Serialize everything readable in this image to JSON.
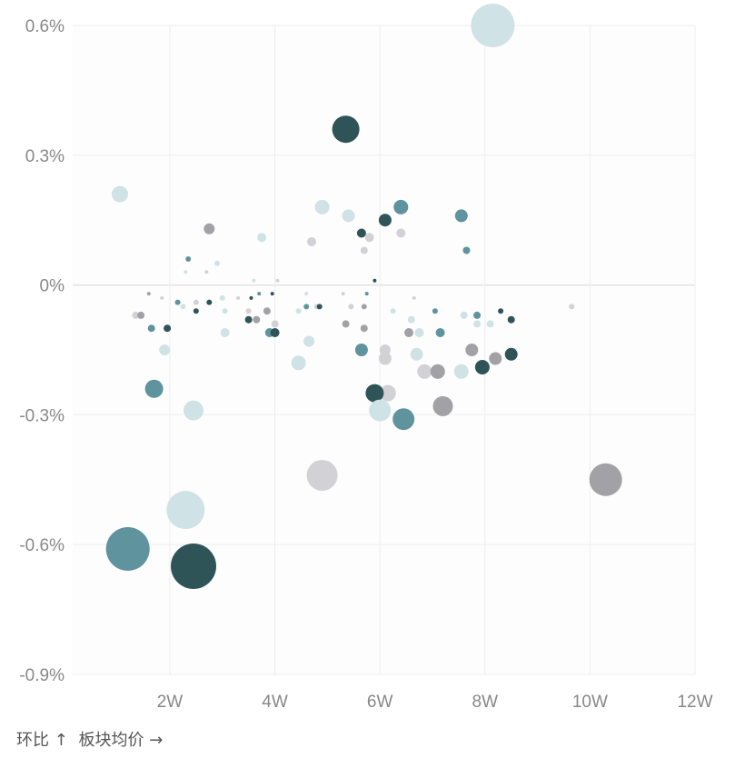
{
  "chart_data": {
    "type": "scatter",
    "title": "",
    "xlabel": "板块均价 →",
    "ylabel": "环比 ↑",
    "x_unit": "W",
    "xlim": [
      0.15,
      12.0
    ],
    "ylim": [
      -0.9,
      0.6
    ],
    "x_ticks": [
      {
        "value": 2,
        "label": "2W"
      },
      {
        "value": 4,
        "label": "4W"
      },
      {
        "value": 6,
        "label": "6W"
      },
      {
        "value": 8,
        "label": "8W"
      },
      {
        "value": 10,
        "label": "10W"
      },
      {
        "value": 12,
        "label": "12W"
      }
    ],
    "y_ticks": [
      {
        "value": 0.6,
        "label": "0.6%"
      },
      {
        "value": 0.3,
        "label": "0.3%"
      },
      {
        "value": 0,
        "label": "0%"
      },
      {
        "value": -0.3,
        "label": "-0.3%"
      },
      {
        "value": -0.6,
        "label": "-0.6%"
      },
      {
        "value": -0.9,
        "label": "-0.9%"
      }
    ],
    "grid": true,
    "colors": {
      "dark": "#2e5458",
      "teal": "#5f939e",
      "light": "#cfe2e5",
      "lightgray": "#d2d2d6",
      "gray": "#a2a2a6"
    },
    "points": [
      {
        "x": 8.15,
        "y": 0.6,
        "size": 24,
        "color": "light"
      },
      {
        "x": 5.35,
        "y": 0.36,
        "size": 15,
        "color": "dark"
      },
      {
        "x": 1.05,
        "y": 0.21,
        "size": 9,
        "color": "light"
      },
      {
        "x": 4.9,
        "y": 0.18,
        "size": 8,
        "color": "light"
      },
      {
        "x": 6.4,
        "y": 0.18,
        "size": 8,
        "color": "teal"
      },
      {
        "x": 7.55,
        "y": 0.16,
        "size": 7,
        "color": "teal"
      },
      {
        "x": 5.4,
        "y": 0.16,
        "size": 7,
        "color": "light"
      },
      {
        "x": 6.1,
        "y": 0.15,
        "size": 7,
        "color": "dark"
      },
      {
        "x": 2.75,
        "y": 0.13,
        "size": 6,
        "color": "gray"
      },
      {
        "x": 5.65,
        "y": 0.12,
        "size": 5,
        "color": "dark"
      },
      {
        "x": 6.4,
        "y": 0.12,
        "size": 5,
        "color": "lightgray"
      },
      {
        "x": 3.75,
        "y": 0.11,
        "size": 5,
        "color": "light"
      },
      {
        "x": 5.8,
        "y": 0.11,
        "size": 5,
        "color": "lightgray"
      },
      {
        "x": 4.7,
        "y": 0.1,
        "size": 5,
        "color": "lightgray"
      },
      {
        "x": 7.65,
        "y": 0.08,
        "size": 4,
        "color": "teal"
      },
      {
        "x": 5.7,
        "y": 0.08,
        "size": 4,
        "color": "lightgray"
      },
      {
        "x": 2.35,
        "y": 0.06,
        "size": 3,
        "color": "teal"
      },
      {
        "x": 2.9,
        "y": 0.05,
        "size": 3,
        "color": "light"
      },
      {
        "x": 2.3,
        "y": 0.03,
        "size": 2,
        "color": "light"
      },
      {
        "x": 2.7,
        "y": 0.03,
        "size": 2,
        "color": "lightgray"
      },
      {
        "x": 3.6,
        "y": 0.01,
        "size": 2,
        "color": "light"
      },
      {
        "x": 4.05,
        "y": 0.01,
        "size": 2,
        "color": "lightgray"
      },
      {
        "x": 5.9,
        "y": 0.01,
        "size": 2,
        "color": "dark"
      },
      {
        "x": 1.6,
        "y": -0.02,
        "size": 2,
        "color": "gray"
      },
      {
        "x": 1.85,
        "y": -0.03,
        "size": 2,
        "color": "lightgray"
      },
      {
        "x": 2.15,
        "y": -0.04,
        "size": 3,
        "color": "teal"
      },
      {
        "x": 2.5,
        "y": -0.04,
        "size": 3,
        "color": "lightgray"
      },
      {
        "x": 2.75,
        "y": -0.04,
        "size": 3,
        "color": "dark"
      },
      {
        "x": 3.0,
        "y": -0.03,
        "size": 3,
        "color": "light"
      },
      {
        "x": 3.3,
        "y": -0.03,
        "size": 2,
        "color": "lightgray"
      },
      {
        "x": 3.55,
        "y": -0.03,
        "size": 2,
        "color": "dark"
      },
      {
        "x": 3.7,
        "y": -0.02,
        "size": 2,
        "color": "teal"
      },
      {
        "x": 3.95,
        "y": -0.02,
        "size": 2,
        "color": "dark"
      },
      {
        "x": 4.6,
        "y": -0.02,
        "size": 2,
        "color": "light"
      },
      {
        "x": 5.3,
        "y": -0.02,
        "size": 2,
        "color": "lightgray"
      },
      {
        "x": 5.75,
        "y": -0.02,
        "size": 2,
        "color": "teal"
      },
      {
        "x": 6.65,
        "y": -0.03,
        "size": 2,
        "color": "lightgray"
      },
      {
        "x": 1.35,
        "y": -0.07,
        "size": 4,
        "color": "lightgray"
      },
      {
        "x": 1.45,
        "y": -0.07,
        "size": 4,
        "color": "gray"
      },
      {
        "x": 2.25,
        "y": -0.05,
        "size": 3,
        "color": "light"
      },
      {
        "x": 2.5,
        "y": -0.06,
        "size": 3,
        "color": "dark"
      },
      {
        "x": 3.05,
        "y": -0.06,
        "size": 3,
        "color": "light"
      },
      {
        "x": 3.5,
        "y": -0.06,
        "size": 3,
        "color": "lightgray"
      },
      {
        "x": 3.85,
        "y": -0.06,
        "size": 4,
        "color": "gray"
      },
      {
        "x": 4.45,
        "y": -0.06,
        "size": 3,
        "color": "light"
      },
      {
        "x": 4.6,
        "y": -0.05,
        "size": 3,
        "color": "teal"
      },
      {
        "x": 4.8,
        "y": -0.05,
        "size": 3,
        "color": "lightgray"
      },
      {
        "x": 4.85,
        "y": -0.05,
        "size": 3,
        "color": "dark"
      },
      {
        "x": 5.45,
        "y": -0.05,
        "size": 3,
        "color": "lightgray"
      },
      {
        "x": 5.7,
        "y": -0.05,
        "size": 3,
        "color": "gray"
      },
      {
        "x": 6.25,
        "y": -0.06,
        "size": 3,
        "color": "light"
      },
      {
        "x": 7.05,
        "y": -0.06,
        "size": 3,
        "color": "teal"
      },
      {
        "x": 7.6,
        "y": -0.07,
        "size": 4,
        "color": "light"
      },
      {
        "x": 7.85,
        "y": -0.07,
        "size": 4,
        "color": "teal"
      },
      {
        "x": 8.3,
        "y": -0.06,
        "size": 3,
        "color": "dark"
      },
      {
        "x": 9.65,
        "y": -0.05,
        "size": 3,
        "color": "lightgray"
      },
      {
        "x": 3.5,
        "y": -0.08,
        "size": 4,
        "color": "dark"
      },
      {
        "x": 3.65,
        "y": -0.08,
        "size": 4,
        "color": "gray"
      },
      {
        "x": 4.0,
        "y": -0.09,
        "size": 4,
        "color": "lightgray"
      },
      {
        "x": 5.35,
        "y": -0.09,
        "size": 4,
        "color": "gray"
      },
      {
        "x": 6.6,
        "y": -0.08,
        "size": 4,
        "color": "light"
      },
      {
        "x": 7.85,
        "y": -0.09,
        "size": 4,
        "color": "light"
      },
      {
        "x": 8.1,
        "y": -0.09,
        "size": 4,
        "color": "light"
      },
      {
        "x": 8.5,
        "y": -0.08,
        "size": 4,
        "color": "dark"
      },
      {
        "x": 1.65,
        "y": -0.1,
        "size": 4,
        "color": "teal"
      },
      {
        "x": 1.95,
        "y": -0.1,
        "size": 4,
        "color": "dark"
      },
      {
        "x": 5.7,
        "y": -0.1,
        "size": 4,
        "color": "gray"
      },
      {
        "x": 3.05,
        "y": -0.11,
        "size": 5,
        "color": "light"
      },
      {
        "x": 3.9,
        "y": -0.11,
        "size": 5,
        "color": "teal"
      },
      {
        "x": 4.0,
        "y": -0.11,
        "size": 5,
        "color": "dark"
      },
      {
        "x": 6.55,
        "y": -0.11,
        "size": 5,
        "color": "gray"
      },
      {
        "x": 6.75,
        "y": -0.11,
        "size": 5,
        "color": "light"
      },
      {
        "x": 7.15,
        "y": -0.11,
        "size": 5,
        "color": "teal"
      },
      {
        "x": 4.65,
        "y": -0.13,
        "size": 6,
        "color": "light"
      },
      {
        "x": 1.9,
        "y": -0.15,
        "size": 6,
        "color": "light"
      },
      {
        "x": 5.65,
        "y": -0.15,
        "size": 7,
        "color": "teal"
      },
      {
        "x": 6.1,
        "y": -0.15,
        "size": 6,
        "color": "lightgray"
      },
      {
        "x": 7.75,
        "y": -0.15,
        "size": 7,
        "color": "gray"
      },
      {
        "x": 6.1,
        "y": -0.17,
        "size": 7,
        "color": "lightgray"
      },
      {
        "x": 6.7,
        "y": -0.16,
        "size": 7,
        "color": "light"
      },
      {
        "x": 8.2,
        "y": -0.17,
        "size": 7,
        "color": "gray"
      },
      {
        "x": 8.5,
        "y": -0.16,
        "size": 7,
        "color": "dark"
      },
      {
        "x": 4.45,
        "y": -0.18,
        "size": 8,
        "color": "light"
      },
      {
        "x": 6.85,
        "y": -0.2,
        "size": 8,
        "color": "lightgray"
      },
      {
        "x": 7.1,
        "y": -0.2,
        "size": 8,
        "color": "gray"
      },
      {
        "x": 7.55,
        "y": -0.2,
        "size": 8,
        "color": "light"
      },
      {
        "x": 7.95,
        "y": -0.19,
        "size": 8,
        "color": "dark"
      },
      {
        "x": 1.7,
        "y": -0.24,
        "size": 10,
        "color": "teal"
      },
      {
        "x": 6.15,
        "y": -0.25,
        "size": 9,
        "color": "lightgray"
      },
      {
        "x": 5.9,
        "y": -0.25,
        "size": 10,
        "color": "dark"
      },
      {
        "x": 7.2,
        "y": -0.28,
        "size": 11,
        "color": "gray"
      },
      {
        "x": 2.45,
        "y": -0.29,
        "size": 11,
        "color": "light"
      },
      {
        "x": 6.0,
        "y": -0.29,
        "size": 12,
        "color": "light"
      },
      {
        "x": 6.45,
        "y": -0.31,
        "size": 12,
        "color": "teal"
      },
      {
        "x": 4.9,
        "y": -0.44,
        "size": 17,
        "color": "lightgray"
      },
      {
        "x": 10.3,
        "y": -0.45,
        "size": 18,
        "color": "gray"
      },
      {
        "x": 2.3,
        "y": -0.52,
        "size": 21,
        "color": "light"
      },
      {
        "x": 1.2,
        "y": -0.61,
        "size": 24,
        "color": "teal"
      },
      {
        "x": 2.45,
        "y": -0.65,
        "size": 25,
        "color": "dark"
      }
    ]
  },
  "footer": {
    "y_caption": "环比 ↑",
    "x_caption": "板块均价 →"
  }
}
